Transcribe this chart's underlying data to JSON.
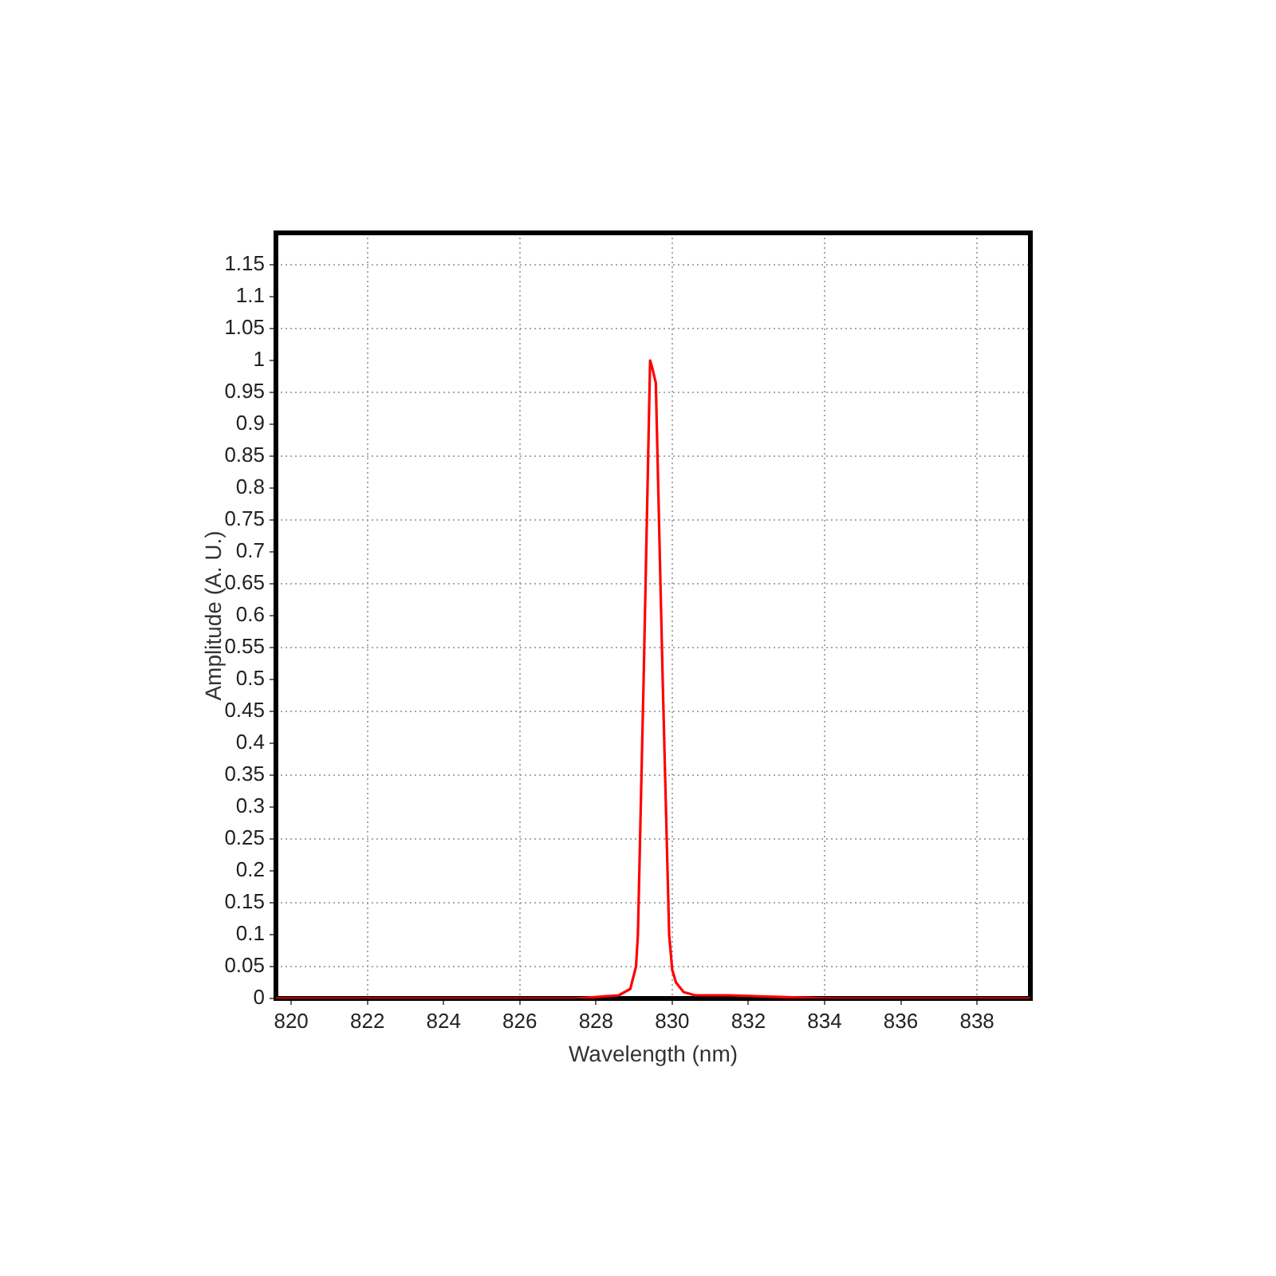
{
  "chart_data": {
    "type": "line",
    "xlabel": "Wavelength (nm)",
    "ylabel": "Amplitude (A. U.)",
    "x": [
      819.6,
      827.5,
      828.6,
      828.9,
      829.05,
      829.1,
      829.25,
      829.42,
      829.47,
      829.57,
      829.75,
      829.92,
      830.0,
      830.1,
      830.3,
      830.6,
      831.5,
      834.0,
      839.4
    ],
    "series": [
      {
        "color": "#ff0000",
        "values": [
          0,
          0,
          0.005,
          0.015,
          0.05,
          0.1,
          0.5,
          1.0,
          0.99,
          0.965,
          0.5,
          0.1,
          0.045,
          0.025,
          0.01,
          0.005,
          0.005,
          0,
          0
        ]
      }
    ],
    "xlim": [
      819.6,
      839.4
    ],
    "xticks": [
      820,
      822,
      824,
      826,
      828,
      830,
      832,
      834,
      836,
      838
    ],
    "ylim": [
      0,
      1.2
    ],
    "yticks": [
      0,
      0.05,
      0.1,
      0.15,
      0.2,
      0.25,
      0.3,
      0.35,
      0.4,
      0.45,
      0.5,
      0.55,
      0.6,
      0.65,
      0.7,
      0.75,
      0.8,
      0.85,
      0.9,
      0.95,
      1,
      1.05,
      1.1,
      1.15
    ],
    "grid": true
  }
}
